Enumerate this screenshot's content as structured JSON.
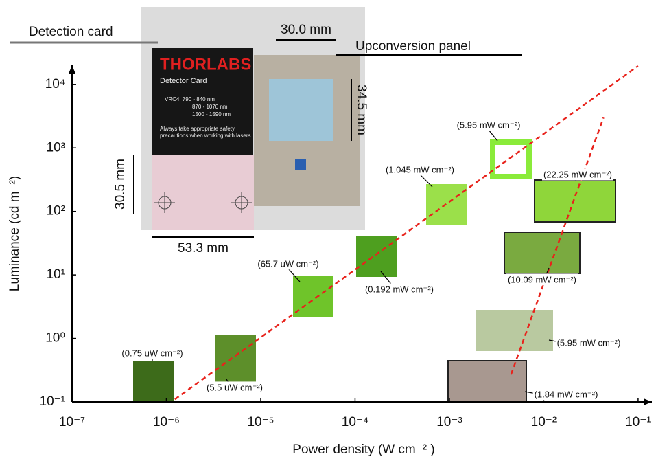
{
  "chart_data": {
    "type": "line",
    "xlabel": "Power density (W cm⁻² )",
    "ylabel": "Luminance (cd m⁻²)",
    "xscale": "log",
    "yscale": "log",
    "xlim": [
      1e-07,
      0.14
    ],
    "ylim": [
      0.1,
      20000
    ],
    "xticks": [
      {
        "value": 1e-07,
        "label": "10⁻⁷"
      },
      {
        "value": 1e-06,
        "label": "10⁻⁶"
      },
      {
        "value": 1e-05,
        "label": "10⁻⁵"
      },
      {
        "value": 0.0001,
        "label": "10⁻⁴"
      },
      {
        "value": 0.001,
        "label": "10⁻³"
      },
      {
        "value": 0.01,
        "label": "10⁻²"
      },
      {
        "value": 0.1,
        "label": "10⁻¹"
      }
    ],
    "yticks": [
      {
        "value": 0.1,
        "label": "10⁻¹"
      },
      {
        "value": 1,
        "label": "10⁰"
      },
      {
        "value": 10,
        "label": "10¹"
      },
      {
        "value": 100,
        "label": "10²"
      },
      {
        "value": 1000,
        "label": "10³"
      },
      {
        "value": 10000,
        "label": "10⁴"
      }
    ],
    "series": [
      {
        "color": "#e8221b",
        "x": [
          1.23e-06,
          0.1
        ],
        "values": [
          0.11,
          19500
        ]
      },
      {
        "color": "#e8221b",
        "x": [
          0.0045,
          0.043
        ],
        "values": [
          0.27,
          3000
        ]
      }
    ],
    "annotations": [
      "(0.75 uW cm⁻²)",
      "(5.5 uW cm⁻²)",
      "(65.7 uW cm⁻²)",
      "(0.192 mW cm⁻²)",
      "(1.045 mW cm⁻²)",
      "(5.95 mW cm⁻²)",
      "(22.25 mW cm⁻²)",
      "(10.09 mW cm⁻²)",
      "(5.95 mW cm⁻²)",
      "(1.84 mW cm⁻²)"
    ],
    "inset": {
      "detection_card": "Detection card",
      "upconversion_panel": "Upconversion panel",
      "width_panel": "30.0 mm",
      "height_panel": "34.5 mm",
      "height_card": "30.5 mm",
      "width_card": "53.3 mm",
      "brand": "THORLABS",
      "card_title": "Detector Card",
      "ranges": [
        "VRC4: 790 - 840 nm",
        "870 - 1070 nm",
        "1500 - 1590 nm"
      ],
      "warning": [
        "Always take appropriate safety",
        "precautions when working with lasers"
      ]
    }
  }
}
